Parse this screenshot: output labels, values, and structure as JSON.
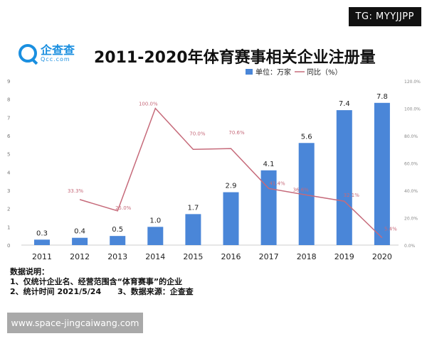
{
  "badge": "TG: MYYJJPP",
  "logo": {
    "name": "企查查",
    "sub": "Qcc.com"
  },
  "chart_data": {
    "type": "bar+line",
    "title": "2011-2020年体育赛事相关企业注册量",
    "categories": [
      "2011",
      "2012",
      "2013",
      "2014",
      "2015",
      "2016",
      "2017",
      "2018",
      "2019",
      "2020"
    ],
    "series": [
      {
        "name": "单位：万家",
        "type": "bar",
        "axis": "left",
        "color": "#4a86d8",
        "values": [
          0.3,
          0.4,
          0.5,
          1.0,
          1.7,
          2.9,
          4.1,
          5.6,
          7.4,
          7.8
        ],
        "labels": [
          "0.3",
          "0.4",
          "0.5",
          "1.0",
          "1.7",
          "2.9",
          "4.1",
          "5.6",
          "7.4",
          "7.8"
        ]
      },
      {
        "name": "同比（%）",
        "type": "line",
        "axis": "right",
        "color": "#c66a7a",
        "values": [
          null,
          33.3,
          25.0,
          100.0,
          70.0,
          70.6,
          41.4,
          36.6,
          32.1,
          5.4
        ],
        "labels": [
          "",
          "33.3%",
          "25.0%",
          "100.0%",
          "70.0%",
          "70.6%",
          "41.4%",
          "36.6%",
          "32.1%",
          "5.4%"
        ]
      }
    ],
    "left_axis": {
      "ylim": [
        0,
        9
      ],
      "ticks": [
        "0",
        "1",
        "2",
        "3",
        "4",
        "5",
        "6",
        "7",
        "8",
        "9"
      ]
    },
    "right_axis": {
      "ylim": [
        0,
        120
      ],
      "ticks": [
        "0.0%",
        "20.0%",
        "40.0%",
        "60.0%",
        "80.0%",
        "100.0%",
        "120.0%"
      ]
    },
    "legend": "top-right",
    "grid": false
  },
  "notes": {
    "heading": "数据说明：",
    "line1": "1、仅统计企业名、经营范围含“体育赛事”的企业",
    "line2": "2、统计时间 2021/5/24      3、数据来源：企查查"
  },
  "watermark": "www.space-jingcaiwang.com"
}
